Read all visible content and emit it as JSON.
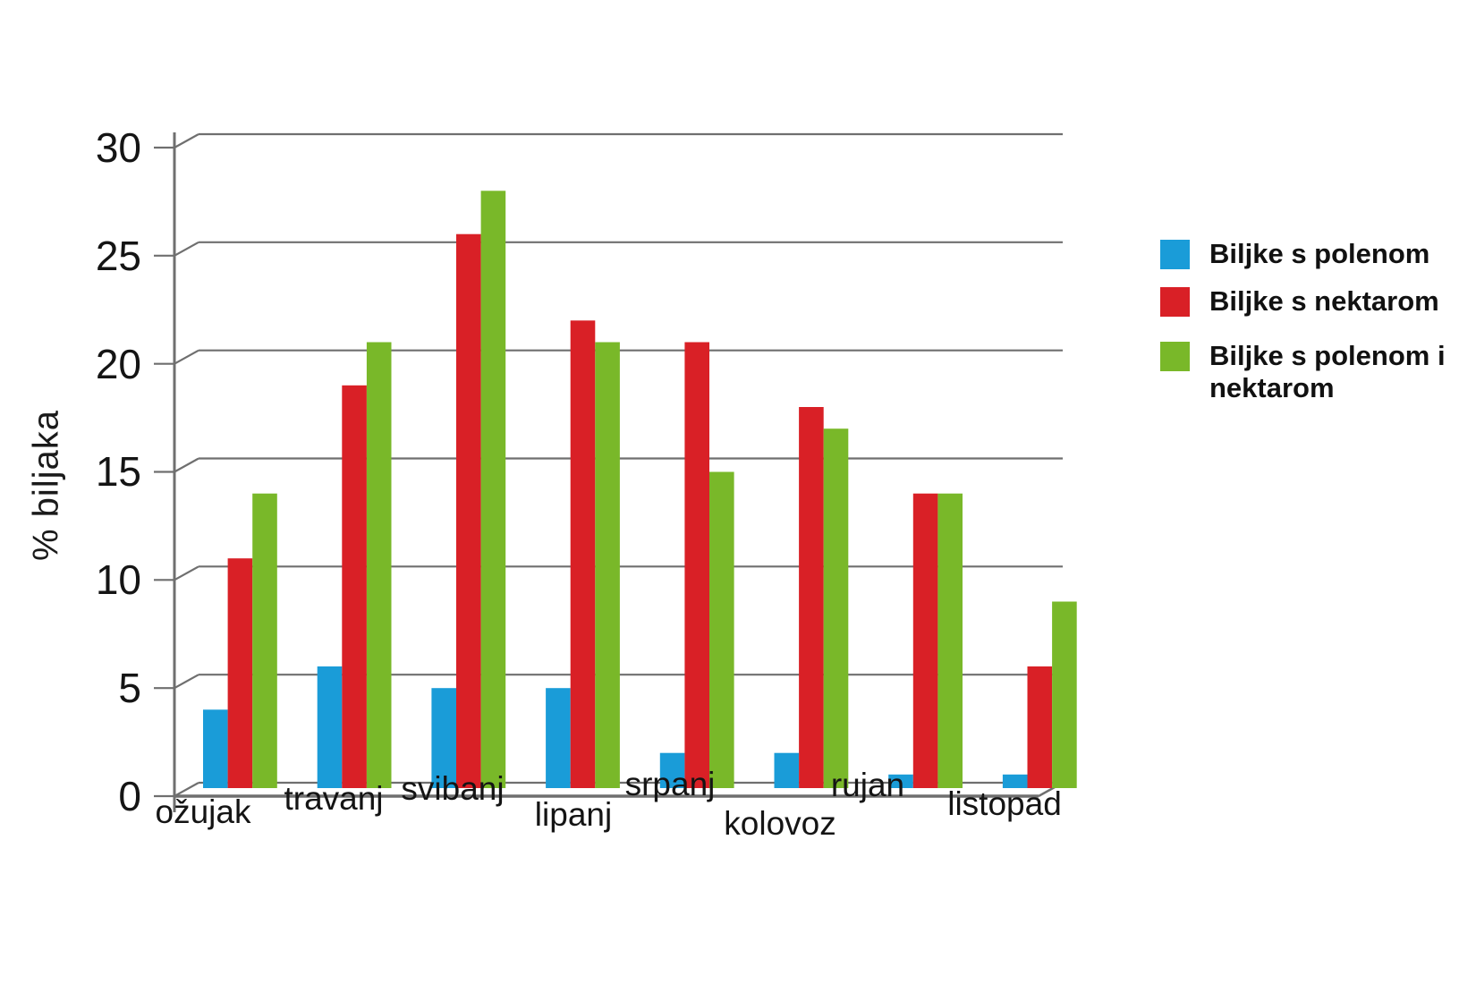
{
  "chart_data": {
    "type": "bar",
    "title": "",
    "xlabel": "",
    "ylabel": "% biljaka",
    "categories": [
      "ožujak",
      "travanj",
      "svibanj",
      "lipanj",
      "srpanj",
      "kolovoz",
      "rujan",
      "listopad"
    ],
    "series": [
      {
        "name": "Biljke s polenom",
        "color": "#1a9cd8",
        "values": [
          4,
          6,
          5,
          5,
          2,
          2,
          1,
          1
        ]
      },
      {
        "name": "Biljke s nektarom",
        "color": "#d92026",
        "values": [
          11,
          19,
          26,
          22,
          21,
          18,
          14,
          6
        ]
      },
      {
        "name": "Biljke s polenom i nektarom",
        "color": "#79b829",
        "values": [
          14,
          21,
          28,
          21,
          15,
          17,
          14,
          9
        ]
      }
    ],
    "yticks": [
      0,
      5,
      10,
      15,
      20,
      25,
      30
    ],
    "ylim": [
      0,
      30
    ],
    "grid": true,
    "legend_position": "right",
    "style": "pseudo-3d offset gridlines, white background",
    "grid_color": "#6f6f6f"
  }
}
